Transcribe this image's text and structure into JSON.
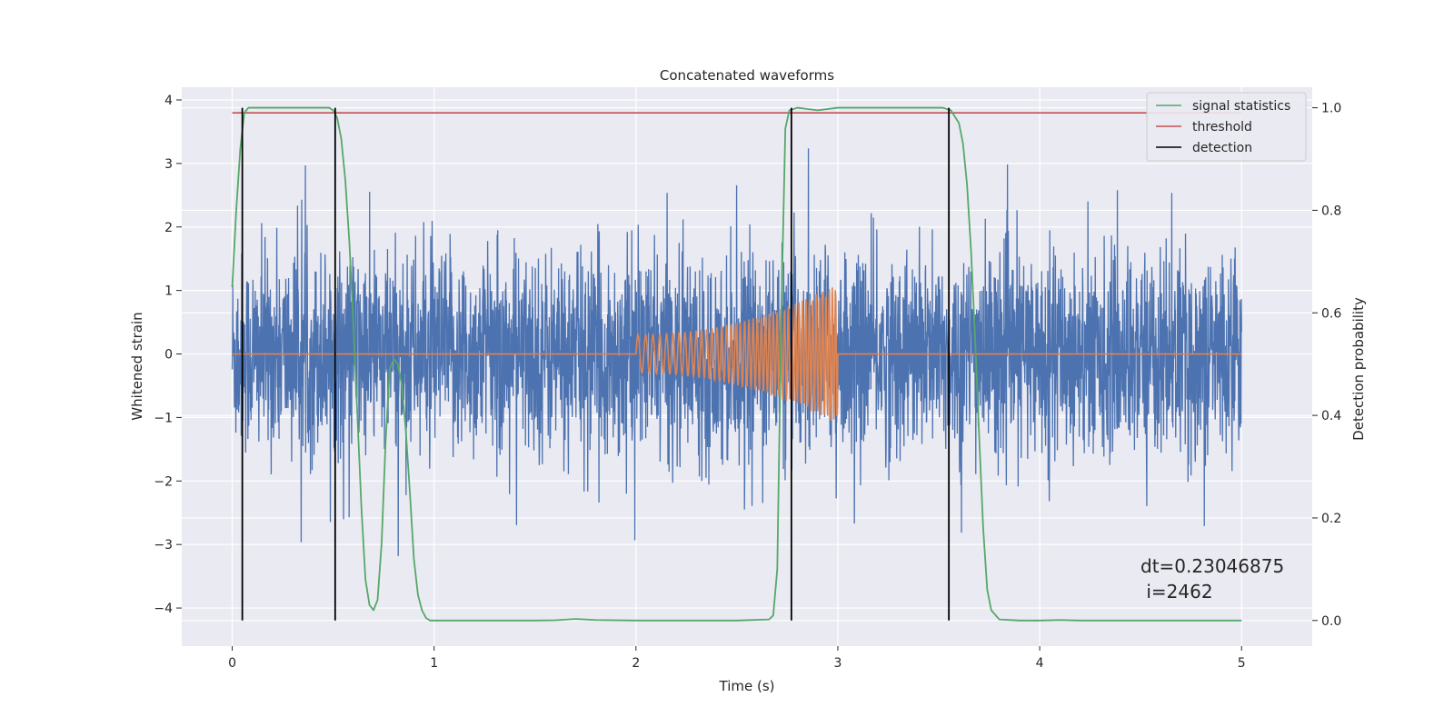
{
  "chart_data": {
    "type": "line",
    "title": "Concatenated waveforms",
    "xlabel": "Time (s)",
    "ylabel": "Whitened strain",
    "y2label": "Detection probability",
    "xlim": [
      -0.25,
      5.35
    ],
    "ylim": [
      -4.6,
      4.2
    ],
    "y2lim": [
      -0.05,
      1.04
    ],
    "xticks": [
      0,
      1,
      2,
      3,
      4,
      5
    ],
    "yticks": [
      -4,
      -3,
      -2,
      -1,
      0,
      1,
      2,
      3,
      4
    ],
    "y2ticks": [
      0.0,
      0.2,
      0.4,
      0.6,
      0.8,
      1.0
    ],
    "grid": true,
    "legend_position": "top-right",
    "colors": {
      "strain": "#4c72b0",
      "template": "#dd8452",
      "signal_statistics": "#55a868",
      "threshold": "#c44e52",
      "detection": "#000000",
      "background": "#eaeaf2",
      "grid": "#ffffff"
    },
    "series": [
      {
        "name": "signal statistics",
        "axis": "right",
        "x": [
          0.0,
          0.02,
          0.04,
          0.06,
          0.08,
          0.12,
          0.2,
          0.3,
          0.4,
          0.48,
          0.5,
          0.52,
          0.54,
          0.56,
          0.58,
          0.6,
          0.62,
          0.64,
          0.66,
          0.68,
          0.7,
          0.72,
          0.74,
          0.76,
          0.78,
          0.8,
          0.82,
          0.84,
          0.86,
          0.88,
          0.9,
          0.92,
          0.94,
          0.96,
          0.98,
          1.0,
          1.1,
          1.3,
          1.5,
          1.6,
          1.7,
          1.8,
          2.0,
          2.2,
          2.5,
          2.66,
          2.68,
          2.7,
          2.72,
          2.74,
          2.76,
          2.8,
          2.9,
          3.0,
          3.2,
          3.4,
          3.52,
          3.56,
          3.6,
          3.62,
          3.64,
          3.66,
          3.68,
          3.7,
          3.72,
          3.74,
          3.76,
          3.8,
          3.9,
          4.0,
          4.1,
          4.2,
          4.5,
          4.8,
          5.0
        ],
        "y": [
          0.65,
          0.8,
          0.92,
          0.99,
          1.0,
          1.0,
          1.0,
          1.0,
          1.0,
          1.0,
          0.995,
          0.98,
          0.94,
          0.86,
          0.74,
          0.58,
          0.4,
          0.22,
          0.08,
          0.03,
          0.02,
          0.04,
          0.15,
          0.35,
          0.49,
          0.51,
          0.5,
          0.46,
          0.37,
          0.25,
          0.12,
          0.05,
          0.02,
          0.005,
          0.0,
          0.0,
          0.0,
          0.0,
          0.0,
          0.0005,
          0.003,
          0.001,
          0.0,
          0.0,
          0.0,
          0.002,
          0.01,
          0.1,
          0.6,
          0.96,
          0.995,
          1.0,
          0.995,
          1.0,
          1.0,
          1.0,
          1.0,
          0.995,
          0.97,
          0.93,
          0.85,
          0.72,
          0.55,
          0.36,
          0.18,
          0.06,
          0.02,
          0.002,
          0.0,
          0.0,
          0.001,
          0.0,
          0.0,
          0.0,
          0.0
        ]
      },
      {
        "name": "threshold",
        "axis": "right",
        "x": [
          0.0,
          5.0
        ],
        "y": [
          0.99,
          0.99
        ]
      },
      {
        "name": "detection",
        "axis": "right",
        "x": [
          0.05,
          0.51,
          2.77,
          3.55
        ],
        "y_range": [
          0.0,
          1.0
        ]
      },
      {
        "axis": "left",
        "kind": "noise",
        "x_range": [
          0.0,
          5.0
        ],
        "typical_range": [
          -2.0,
          2.3
        ]
      },
      {
        "axis": "left",
        "kind": "chirp",
        "x": [
          0.0,
          2.0,
          3.0,
          5.0
        ],
        "y_amplitude": [
          0.0,
          0.3,
          1.1,
          0.0
        ]
      }
    ],
    "annotation": {
      "line1": "dt=0.23046875",
      "line2": " i=2462",
      "x": 4.5,
      "y": -3.4
    }
  }
}
